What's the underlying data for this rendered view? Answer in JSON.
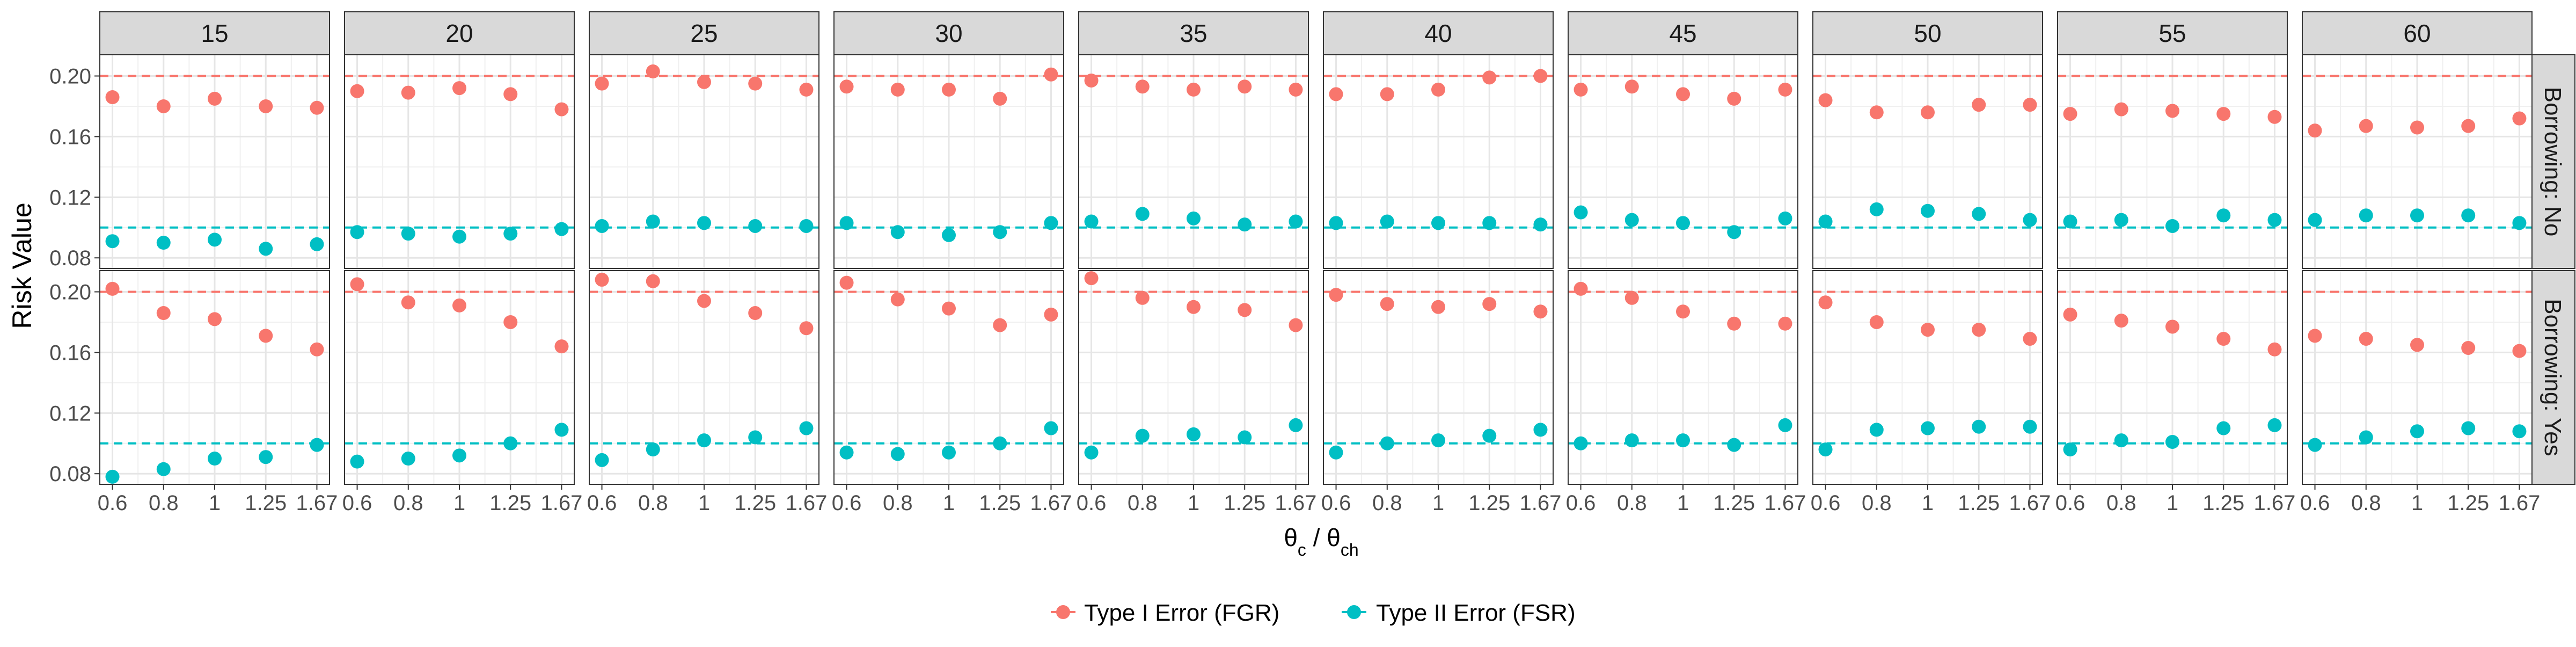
{
  "chart_data": {
    "type": "scatter",
    "layout": "faceted grid (columns x rows)",
    "xlabel_main": "θ",
    "xlabel_sub1": "c",
    "xlabel_mid": " / θ",
    "xlabel_sub2": "ch",
    "ylabel": "Risk Value",
    "x_tick_labels": [
      "0.6",
      "0.8",
      "1",
      "1.25",
      "1.67"
    ],
    "y_ticks": [
      0.08,
      0.12,
      0.16,
      0.2
    ],
    "y_tick_labels": [
      "0.08",
      "0.12",
      "0.16",
      "0.20"
    ],
    "ylim": [
      0.073,
      0.214
    ],
    "grid": true,
    "legend_position": "bottom",
    "column_facets": [
      "15",
      "20",
      "25",
      "30",
      "35",
      "40",
      "45",
      "50",
      "55",
      "60"
    ],
    "row_facets": [
      "Borrowing: No",
      "Borrowing: Yes"
    ],
    "reference_lines": [
      {
        "series": "Type I Error (FGR)",
        "y": 0.2
      },
      {
        "series": "Type II Error (FSR)",
        "y": 0.1
      }
    ],
    "series": [
      {
        "name": "Type I Error (FGR)",
        "color": "#F8766D"
      },
      {
        "name": "Type II Error (FSR)",
        "color": "#00BFC4"
      }
    ],
    "panels": [
      {
        "col": "15",
        "row": "Borrowing: No",
        "fgr": [
          0.186,
          0.18,
          0.185,
          0.18,
          0.179
        ],
        "fsr": [
          0.091,
          0.09,
          0.092,
          0.086,
          0.089
        ]
      },
      {
        "col": "20",
        "row": "Borrowing: No",
        "fgr": [
          0.19,
          0.189,
          0.192,
          0.188,
          0.178
        ],
        "fsr": [
          0.097,
          0.096,
          0.094,
          0.096,
          0.099
        ]
      },
      {
        "col": "25",
        "row": "Borrowing: No",
        "fgr": [
          0.195,
          0.203,
          0.196,
          0.195,
          0.191
        ],
        "fsr": [
          0.101,
          0.104,
          0.103,
          0.101,
          0.101
        ]
      },
      {
        "col": "30",
        "row": "Borrowing: No",
        "fgr": [
          0.193,
          0.191,
          0.191,
          0.185,
          0.201
        ],
        "fsr": [
          0.103,
          0.097,
          0.095,
          0.097,
          0.103
        ]
      },
      {
        "col": "35",
        "row": "Borrowing: No",
        "fgr": [
          0.197,
          0.193,
          0.191,
          0.193,
          0.191
        ],
        "fsr": [
          0.104,
          0.109,
          0.106,
          0.102,
          0.104
        ]
      },
      {
        "col": "40",
        "row": "Borrowing: No",
        "fgr": [
          0.188,
          0.188,
          0.191,
          0.199,
          0.2
        ],
        "fsr": [
          0.103,
          0.104,
          0.103,
          0.103,
          0.102
        ]
      },
      {
        "col": "45",
        "row": "Borrowing: No",
        "fgr": [
          0.191,
          0.193,
          0.188,
          0.185,
          0.191
        ],
        "fsr": [
          0.11,
          0.105,
          0.103,
          0.097,
          0.106
        ]
      },
      {
        "col": "50",
        "row": "Borrowing: No",
        "fgr": [
          0.184,
          0.176,
          0.176,
          0.181,
          0.181
        ],
        "fsr": [
          0.104,
          0.112,
          0.111,
          0.109,
          0.105
        ]
      },
      {
        "col": "55",
        "row": "Borrowing: No",
        "fgr": [
          0.175,
          0.178,
          0.177,
          0.175,
          0.173
        ],
        "fsr": [
          0.104,
          0.105,
          0.101,
          0.108,
          0.105
        ]
      },
      {
        "col": "60",
        "row": "Borrowing: No",
        "fgr": [
          0.164,
          0.167,
          0.166,
          0.167,
          0.172
        ],
        "fsr": [
          0.105,
          0.108,
          0.108,
          0.108,
          0.103
        ]
      },
      {
        "col": "15",
        "row": "Borrowing: Yes",
        "fgr": [
          0.202,
          0.186,
          0.182,
          0.171,
          0.162
        ],
        "fsr": [
          0.078,
          0.083,
          0.09,
          0.091,
          0.099
        ]
      },
      {
        "col": "20",
        "row": "Borrowing: Yes",
        "fgr": [
          0.205,
          0.193,
          0.191,
          0.18,
          0.164
        ],
        "fsr": [
          0.088,
          0.09,
          0.092,
          0.1,
          0.109
        ]
      },
      {
        "col": "25",
        "row": "Borrowing: Yes",
        "fgr": [
          0.208,
          0.207,
          0.194,
          0.186,
          0.176
        ],
        "fsr": [
          0.089,
          0.096,
          0.102,
          0.104,
          0.11
        ]
      },
      {
        "col": "30",
        "row": "Borrowing: Yes",
        "fgr": [
          0.206,
          0.195,
          0.189,
          0.178,
          0.185
        ],
        "fsr": [
          0.094,
          0.093,
          0.094,
          0.1,
          0.11
        ]
      },
      {
        "col": "35",
        "row": "Borrowing: Yes",
        "fgr": [
          0.209,
          0.196,
          0.19,
          0.188,
          0.178
        ],
        "fsr": [
          0.094,
          0.105,
          0.106,
          0.104,
          0.112
        ]
      },
      {
        "col": "40",
        "row": "Borrowing: Yes",
        "fgr": [
          0.198,
          0.192,
          0.19,
          0.192,
          0.187
        ],
        "fsr": [
          0.094,
          0.1,
          0.102,
          0.105,
          0.109
        ]
      },
      {
        "col": "45",
        "row": "Borrowing: Yes",
        "fgr": [
          0.202,
          0.196,
          0.187,
          0.179,
          0.179
        ],
        "fsr": [
          0.1,
          0.102,
          0.102,
          0.099,
          0.112
        ]
      },
      {
        "col": "50",
        "row": "Borrowing: Yes",
        "fgr": [
          0.193,
          0.18,
          0.175,
          0.175,
          0.169
        ],
        "fsr": [
          0.096,
          0.109,
          0.11,
          0.111,
          0.111
        ]
      },
      {
        "col": "55",
        "row": "Borrowing: Yes",
        "fgr": [
          0.185,
          0.181,
          0.177,
          0.169,
          0.162
        ],
        "fsr": [
          0.096,
          0.102,
          0.101,
          0.11,
          0.112
        ]
      },
      {
        "col": "60",
        "row": "Borrowing: Yes",
        "fgr": [
          0.171,
          0.169,
          0.165,
          0.163,
          0.161
        ],
        "fsr": [
          0.099,
          0.104,
          0.108,
          0.11,
          0.108
        ]
      }
    ]
  }
}
